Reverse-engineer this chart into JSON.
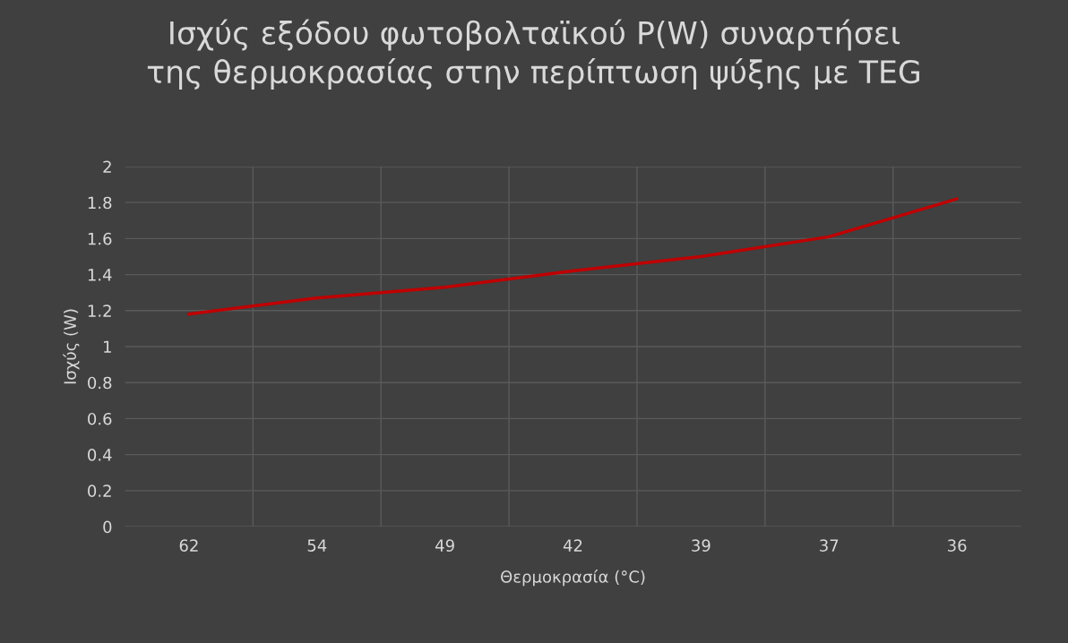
{
  "chart_data": {
    "type": "line",
    "title": "Ισχύς εξόδου φωτοβολταϊκού P(W) συναρτήσει\nτης θερμοκρασίας στην περίπτωση ψύξης με TEG",
    "xlabel": "Θερμοκρασία (°C)",
    "ylabel": "Ισχύς (W)",
    "categories": [
      "62",
      "54",
      "49",
      "42",
      "39",
      "37",
      "36"
    ],
    "series": [
      {
        "color": "#c00000",
        "values": [
          1.18,
          1.27,
          1.33,
          1.42,
          1.5,
          1.61,
          1.82
        ]
      }
    ],
    "ylim": [
      0,
      2
    ],
    "yticks": [
      0,
      0.2,
      0.4,
      0.6,
      0.8,
      1,
      1.2,
      1.4,
      1.6,
      1.8,
      2
    ],
    "grid": true,
    "marker": "none",
    "line_style": "solid"
  }
}
